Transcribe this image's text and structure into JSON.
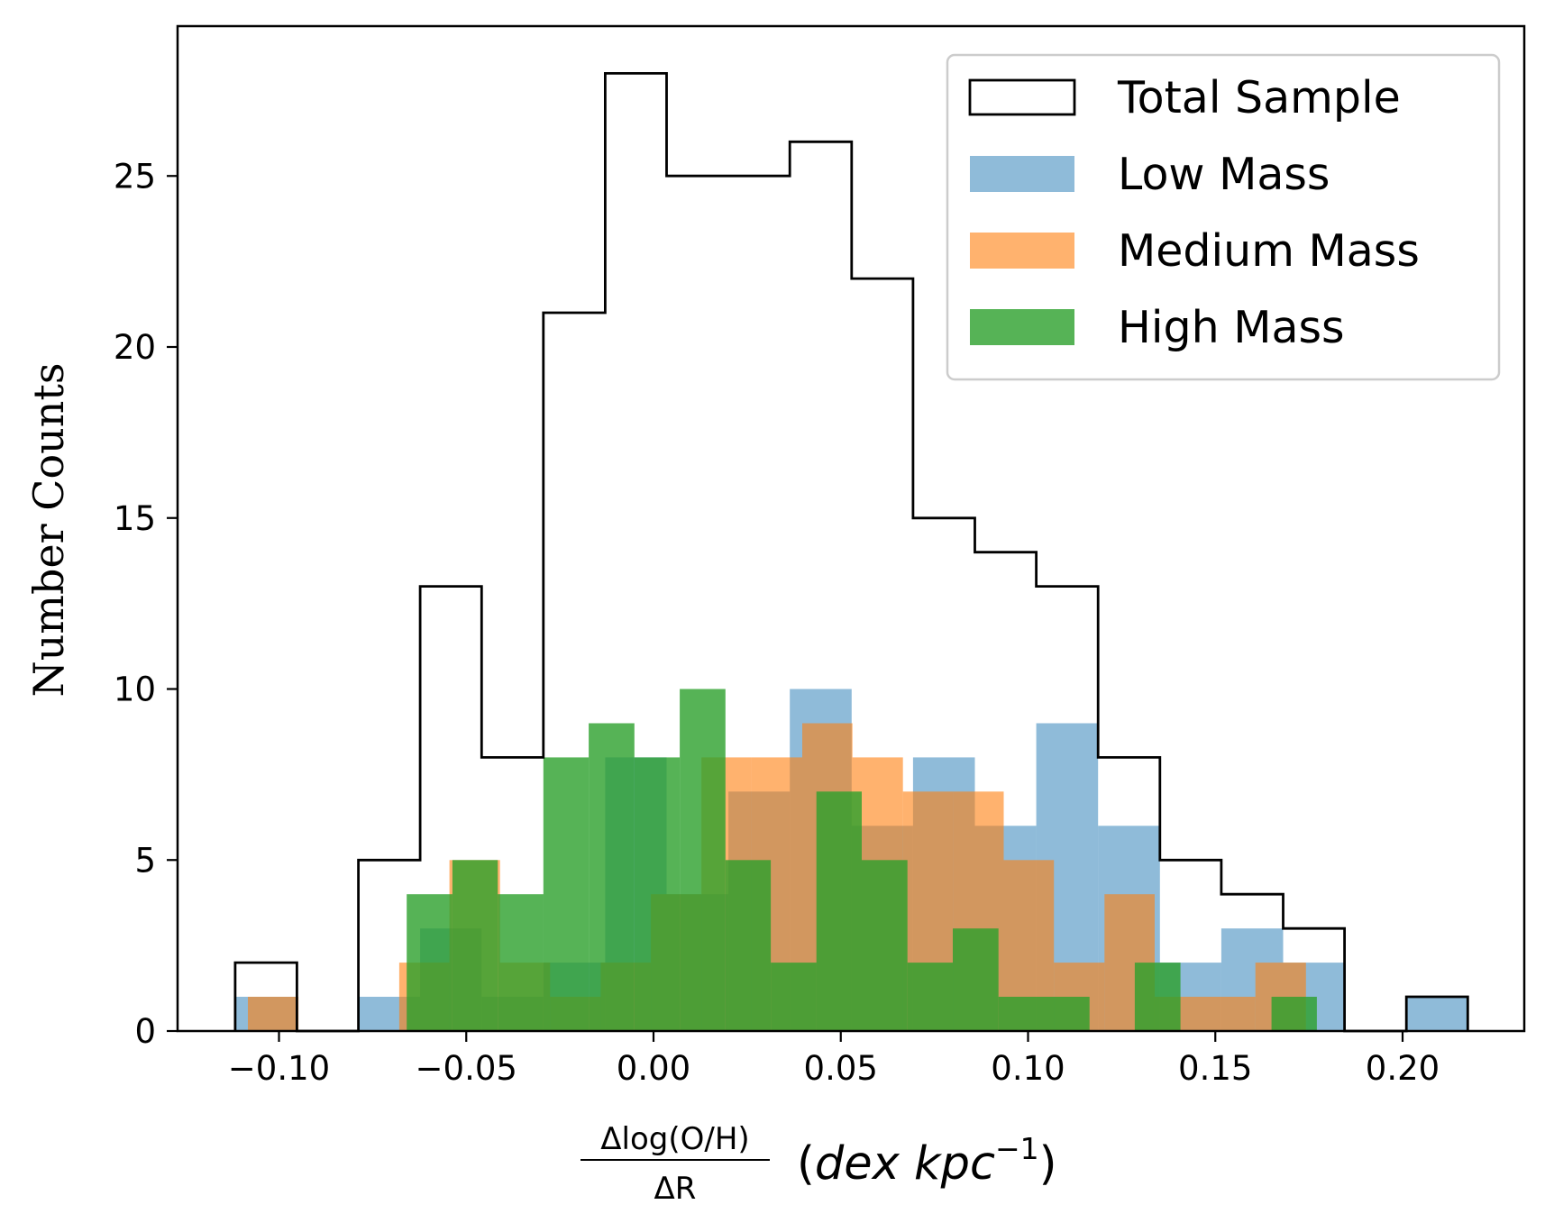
{
  "chart_data": {
    "type": "histogram",
    "title": "",
    "xlabel": {
      "numerator": "Δlog(O/H)",
      "denominator": "ΔR",
      "unit_open": "(",
      "unit_dex": "dex kpc",
      "unit_exp": "−1",
      "unit_close": ")"
    },
    "ylabel": "Number Counts",
    "xlim": [
      -0.125,
      0.232
    ],
    "ylim": [
      0,
      29.5
    ],
    "xticks": [
      -0.1,
      -0.05,
      0.0,
      0.05,
      0.1,
      0.15,
      0.2
    ],
    "xtick_labels": [
      "−0.10",
      "−0.05",
      "0.00",
      "0.05",
      "0.10",
      "0.15",
      "0.20"
    ],
    "yticks": [
      0,
      5,
      10,
      15,
      20,
      25
    ],
    "ytick_labels": [
      "0",
      "5",
      "10",
      "15",
      "20",
      "25"
    ],
    "legend_position": "top-right",
    "series": [
      {
        "name": "Total Sample",
        "style": "step",
        "color": "#000000",
        "edges": [
          -0.1117,
          -0.0952,
          -0.0788,
          -0.0623,
          -0.0459,
          -0.0294,
          -0.0129,
          0.0035,
          0.02,
          0.0364,
          0.0529,
          0.0693,
          0.0858,
          0.1022,
          0.1187,
          0.1352,
          0.1516,
          0.1681,
          0.1845,
          0.201,
          0.2174
        ],
        "counts": [
          2,
          0,
          5,
          13,
          8,
          21,
          28,
          25,
          25,
          26,
          22,
          15,
          14,
          13,
          8,
          5,
          4,
          3,
          0,
          1
        ]
      },
      {
        "name": "Low Mass",
        "style": "filled",
        "color": "#1f77b4",
        "opacity": 0.5,
        "edges": [
          -0.1117,
          -0.0952,
          -0.0788,
          -0.0623,
          -0.0459,
          -0.0294,
          -0.0129,
          0.0035,
          0.02,
          0.0364,
          0.0529,
          0.0693,
          0.0858,
          0.1022,
          0.1187,
          0.1352,
          0.1516,
          0.1681,
          0.1845,
          0.201,
          0.2174
        ],
        "counts": [
          1,
          0,
          1,
          3,
          1,
          2,
          8,
          4,
          7,
          10,
          6,
          8,
          6,
          9,
          6,
          2,
          3,
          2,
          0,
          1
        ]
      },
      {
        "name": "Medium Mass",
        "style": "filled",
        "color": "#ff7f0e",
        "opacity": 0.6,
        "edges": [
          -0.1083,
          -0.0948,
          -0.0814,
          -0.0679,
          -0.0545,
          -0.041,
          -0.0276,
          -0.0141,
          -0.0007,
          0.0128,
          0.0262,
          0.0397,
          0.0531,
          0.0666,
          0.08,
          0.0935,
          0.1069,
          0.1204,
          0.1338,
          0.1473,
          0.1607,
          0.1742
        ],
        "counts": [
          1,
          0,
          0,
          2,
          5,
          2,
          1,
          2,
          4,
          8,
          8,
          9,
          8,
          7,
          7,
          5,
          2,
          4,
          1,
          1,
          2
        ]
      },
      {
        "name": "High Mass",
        "style": "filled",
        "color": "#2ca02c",
        "opacity": 0.8,
        "edges": [
          -0.0659,
          -0.0537,
          -0.0416,
          -0.0294,
          -0.0173,
          -0.0051,
          0.007,
          0.0192,
          0.0313,
          0.0435,
          0.0556,
          0.0678,
          0.0799,
          0.0921,
          0.1042,
          0.1164,
          0.1285,
          0.1407,
          0.1528,
          0.165,
          0.1771
        ],
        "counts": [
          4,
          5,
          4,
          8,
          9,
          8,
          10,
          5,
          2,
          7,
          5,
          2,
          3,
          1,
          1,
          0,
          2,
          0,
          0,
          1
        ]
      }
    ]
  }
}
